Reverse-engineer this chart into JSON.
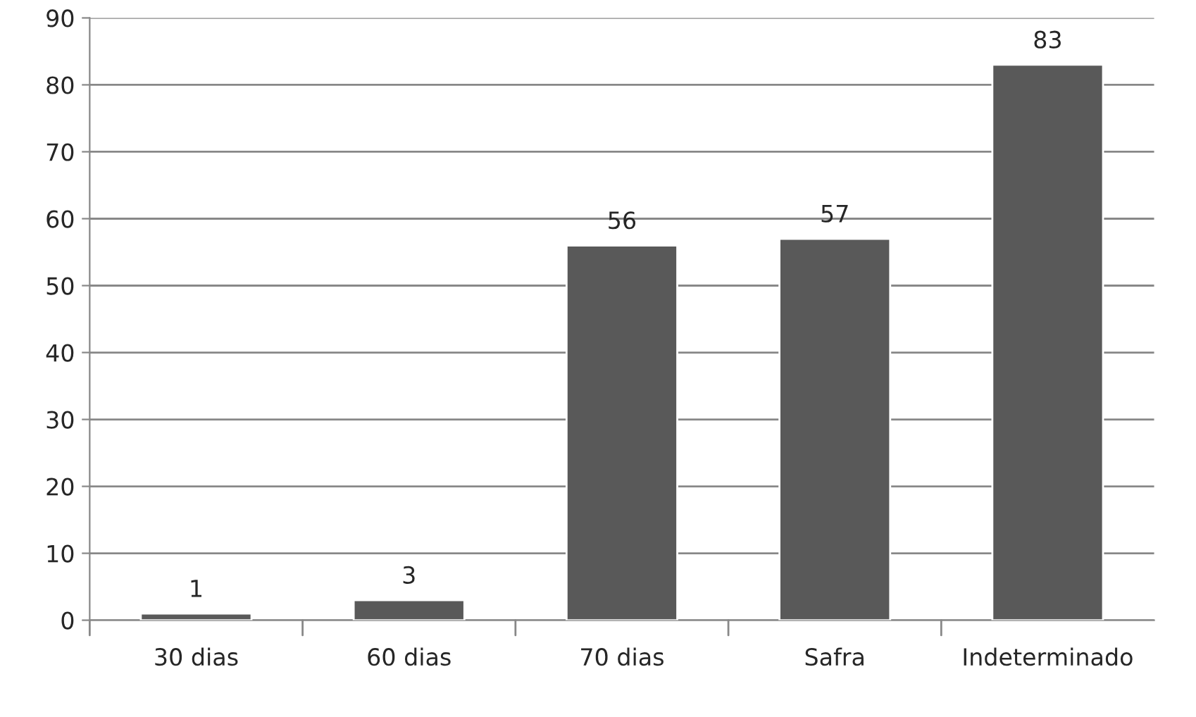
{
  "chart_data": {
    "type": "bar",
    "categories": [
      "30 dias",
      "60 dias",
      "70 dias",
      "Safra",
      "Indeterminado"
    ],
    "values": [
      1,
      3,
      56,
      57,
      83
    ],
    "color": "#595959",
    "ylim": [
      0,
      90
    ],
    "yticks": [
      0,
      10,
      20,
      30,
      40,
      50,
      60,
      70,
      80,
      90
    ],
    "grid": "y",
    "data_labels": true
  }
}
